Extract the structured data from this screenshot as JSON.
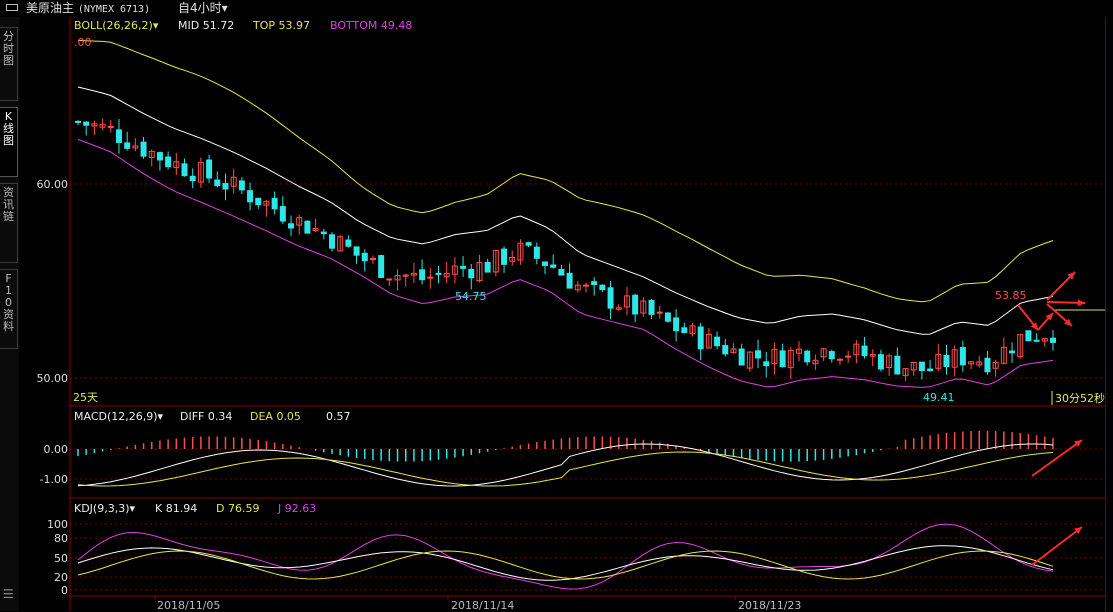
{
  "header": {
    "symbol_name": "美原油主",
    "symbol_code": "(NYMEX 6713)",
    "period": "自4小时▾"
  },
  "sidebar": {
    "tabs": [
      {
        "label": "分时图"
      },
      {
        "label": "K线图"
      },
      {
        "label": "资讯链"
      },
      {
        "label": "F10资料"
      }
    ],
    "bottom_icon": "list-icon"
  },
  "boll": {
    "title": "BOLL(26,26,2)▾",
    "mid": "MID 51.72",
    "top": "TOP 53.97",
    "bottom": "BOTTOM 49.48",
    "corner_value": ".00",
    "y_labels": [
      "60.00",
      "50.00"
    ],
    "annotations": {
      "low1": "54.75",
      "low2": "49.41",
      "high": "53.85"
    },
    "days_label": "25天",
    "countdown": "30分52秒",
    "colors": {
      "mid": "#ffffff",
      "top": "#e6e64c",
      "bottom": "#e040e0",
      "up": "#ff4d4d",
      "down": "#2ee6e6"
    }
  },
  "macd": {
    "title": "MACD(12,26,9)▾",
    "diff": "DIFF 0.34",
    "dea": "DEA 0.05",
    "macd": "0.57",
    "y_labels": [
      "0.00",
      "-1.00"
    ]
  },
  "kdj": {
    "title": "KDJ(9,3,3)▾",
    "k": "K 81.94",
    "d": "D 76.59",
    "j": "J 92.63",
    "y_labels": [
      "100",
      "80",
      "50",
      "20",
      "0"
    ]
  },
  "x_axis": {
    "dates": [
      "2018/11/05",
      "2018/11/14",
      "2018/11/23"
    ]
  },
  "chart_data": {
    "type": "candlestick",
    "symbol": "美原油主 (NYMEX 6713)",
    "period": "4小时",
    "price_axis_ticks": [
      60.0,
      50.0
    ],
    "annotated_prices": {
      "high": 53.85,
      "low_a": 54.75,
      "low_b": 49.41
    },
    "boll_last": {
      "mid": 51.72,
      "top": 53.97,
      "bottom": 49.48
    },
    "macd_last": {
      "diff": 0.34,
      "dea": 0.05,
      "macd": 0.57
    },
    "kdj_last": {
      "k": 81.94,
      "d": 76.59,
      "j": 92.63
    },
    "x_tick_labels": [
      "2018/11/05",
      "2018/11/14",
      "2018/11/23"
    ],
    "close_path_approx": [
      63.2,
      62.8,
      61.9,
      61.1,
      60.5,
      59.8,
      59.0,
      58.1,
      57.3,
      56.2,
      55.4,
      55.1,
      55.6,
      55.8,
      56.6,
      55.9,
      54.6,
      54.0,
      53.4,
      52.6,
      51.9,
      51.3,
      51.0,
      51.4,
      51.5,
      51.2,
      50.7,
      50.4,
      51.1,
      50.9,
      52.1,
      52.4
    ]
  }
}
